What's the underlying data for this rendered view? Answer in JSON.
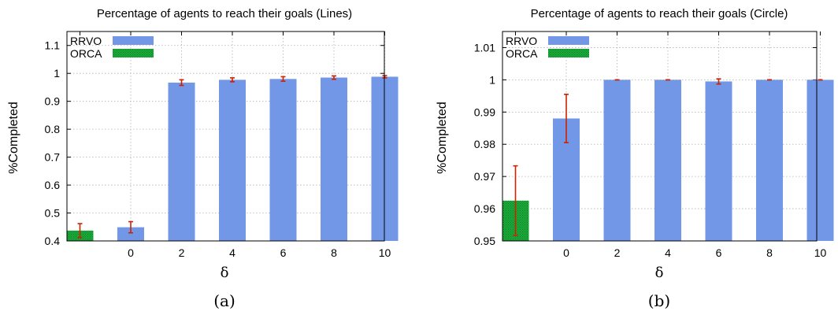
{
  "colors": {
    "rrvo": "#7297e6",
    "orca": "#1aaa3a",
    "orca_dots": "#0e7f28",
    "error": "#cc2200",
    "grid": "#b0b0b0"
  },
  "chart_data": [
    {
      "type": "bar",
      "title": "Percentage of agents to reach their goals (Lines)",
      "xlabel": "δ",
      "ylabel": "%Completed",
      "caption": "(a)",
      "ylim": [
        0.4,
        1.15
      ],
      "yticks": [
        0.4,
        0.5,
        0.6,
        0.7,
        0.8,
        0.9,
        1,
        1.1
      ],
      "ytick_labels": [
        "0.4",
        "0.5",
        "0.6",
        "0.7",
        "0.8",
        "0.9",
        "1",
        "1.1"
      ],
      "categories": [
        "",
        "0",
        "2",
        "4",
        "6",
        "8",
        "10"
      ],
      "grid": true,
      "legend_position": "top-left",
      "series": [
        {
          "name": "RRVO",
          "values": [
            null,
            0.449,
            0.967,
            0.977,
            0.98,
            0.985,
            0.988
          ],
          "errors": [
            null,
            0.02,
            0.01,
            0.007,
            0.008,
            0.006,
            0.004
          ]
        },
        {
          "name": "ORCA",
          "values": [
            0.437,
            null,
            null,
            null,
            null,
            null,
            null
          ],
          "errors": [
            0.025,
            null,
            null,
            null,
            null,
            null,
            null
          ]
        }
      ]
    },
    {
      "type": "bar",
      "title": "Percentage of agents to reach their goals (Circle)",
      "xlabel": "δ",
      "ylabel": "%Completed",
      "caption": "(b)",
      "ylim": [
        0.95,
        1.015
      ],
      "yticks": [
        0.95,
        0.96,
        0.97,
        0.98,
        0.99,
        1,
        1.01
      ],
      "ytick_labels": [
        "0.95",
        "0.96",
        "0.97",
        "0.98",
        "0.99",
        "1",
        "1.01"
      ],
      "categories": [
        "",
        "0",
        "2",
        "4",
        "6",
        "8",
        "10"
      ],
      "grid": true,
      "legend_position": "top-left",
      "series": [
        {
          "name": "RRVO",
          "values": [
            null,
            0.988,
            1.0,
            1.0,
            0.9995,
            1.0,
            1.0
          ],
          "errors": [
            null,
            0.0075,
            0,
            0,
            0.0008,
            0,
            0
          ]
        },
        {
          "name": "ORCA",
          "values": [
            0.9625,
            null,
            null,
            null,
            null,
            null,
            null
          ],
          "errors": [
            0.0108,
            null,
            null,
            null,
            null,
            null,
            null
          ]
        }
      ]
    }
  ]
}
